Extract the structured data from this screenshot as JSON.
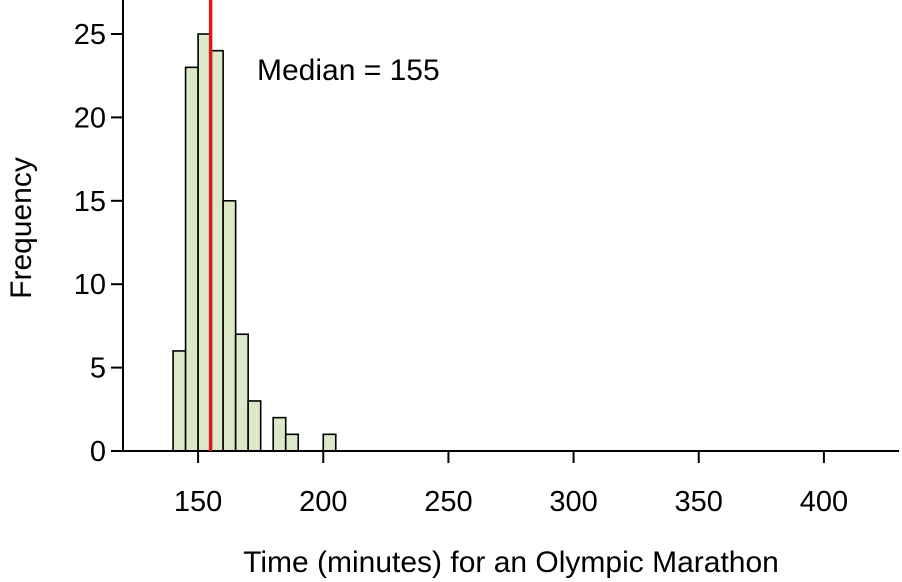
{
  "chart_data": {
    "type": "histogram",
    "xlabel": "Time (minutes) for an Olympic Marathon",
    "ylabel": "Frequency",
    "xlim": [
      120,
      430
    ],
    "ylim": [
      0,
      27
    ],
    "x_ticks": [
      "150",
      "200",
      "250",
      "300",
      "350",
      "400"
    ],
    "y_ticks": [
      "0",
      "5",
      "10",
      "15",
      "20",
      "25"
    ],
    "bin_width": 5,
    "bins": [
      {
        "start": 140,
        "end": 145,
        "count": 6
      },
      {
        "start": 145,
        "end": 150,
        "count": 23
      },
      {
        "start": 150,
        "end": 155,
        "count": 25
      },
      {
        "start": 155,
        "end": 160,
        "count": 24
      },
      {
        "start": 160,
        "end": 165,
        "count": 15
      },
      {
        "start": 165,
        "end": 170,
        "count": 7
      },
      {
        "start": 170,
        "end": 175,
        "count": 3
      },
      {
        "start": 175,
        "end": 180,
        "count": 0
      },
      {
        "start": 180,
        "end": 185,
        "count": 2
      },
      {
        "start": 185,
        "end": 190,
        "count": 1
      },
      {
        "start": 190,
        "end": 195,
        "count": 0
      },
      {
        "start": 195,
        "end": 200,
        "count": 0
      },
      {
        "start": 200,
        "end": 205,
        "count": 1
      }
    ],
    "median": 155,
    "annotation": "Median = 155",
    "colors": {
      "bar_fill": "#dbe9c9",
      "bar_stroke": "#000000",
      "median_line": "#e0161c"
    }
  }
}
